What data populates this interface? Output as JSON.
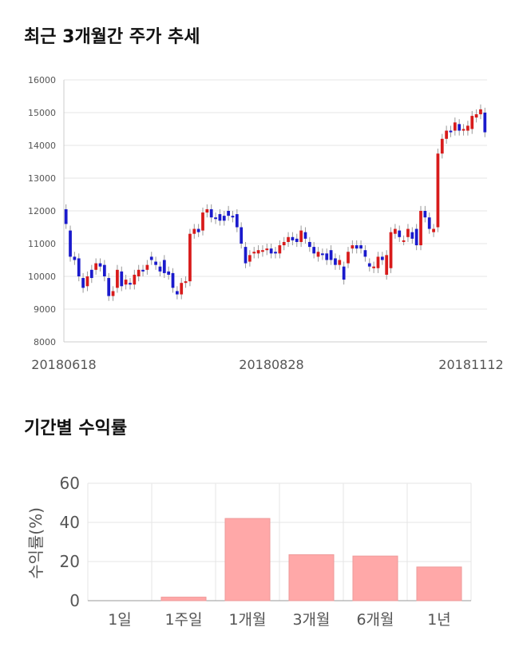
{
  "section1": {
    "title": "최근 3개월간 주가 추세"
  },
  "section2": {
    "title": "기간별 수익률"
  },
  "chart_data": [
    {
      "type": "candlestick",
      "title": "최근 3개월간 주가 추세",
      "ylim": [
        8000,
        16000
      ],
      "yticks": [
        8000,
        9000,
        10000,
        11000,
        12000,
        13000,
        14000,
        15000,
        16000
      ],
      "xticks": [
        "20180618",
        "20180828",
        "20181112"
      ],
      "up_color": "#d81b1b",
      "down_color": "#1a1acc",
      "grid": true,
      "series": [
        {
          "o": 12050,
          "c": 11600
        },
        {
          "o": 11400,
          "c": 10600
        },
        {
          "o": 10600,
          "c": 10500
        },
        {
          "o": 10550,
          "c": 10000
        },
        {
          "o": 9950,
          "c": 9650
        },
        {
          "o": 9700,
          "c": 10000
        },
        {
          "o": 10200,
          "c": 9950
        },
        {
          "o": 10200,
          "c": 10400
        },
        {
          "o": 10400,
          "c": 10300
        },
        {
          "o": 10350,
          "c": 10000
        },
        {
          "o": 9950,
          "c": 9400
        },
        {
          "o": 9400,
          "c": 9550
        },
        {
          "o": 9650,
          "c": 10200
        },
        {
          "o": 10150,
          "c": 9700
        },
        {
          "o": 9750,
          "c": 9900
        },
        {
          "o": 9800,
          "c": 9750
        },
        {
          "o": 9750,
          "c": 10050
        },
        {
          "o": 10000,
          "c": 10200
        },
        {
          "o": 10200,
          "c": 10150
        },
        {
          "o": 10200,
          "c": 10350
        },
        {
          "o": 10600,
          "c": 10500
        },
        {
          "o": 10450,
          "c": 10350
        },
        {
          "o": 10300,
          "c": 10150
        },
        {
          "o": 10500,
          "c": 10100
        },
        {
          "o": 10150,
          "c": 10050
        },
        {
          "o": 10100,
          "c": 9650
        },
        {
          "o": 9550,
          "c": 9450
        },
        {
          "o": 9450,
          "c": 9800
        },
        {
          "o": 9800,
          "c": 9850
        },
        {
          "o": 9850,
          "c": 11300
        },
        {
          "o": 11300,
          "c": 11450
        },
        {
          "o": 11450,
          "c": 11350
        },
        {
          "o": 11400,
          "c": 11950
        },
        {
          "o": 11950,
          "c": 12050
        },
        {
          "o": 12050,
          "c": 11800
        },
        {
          "o": 11800,
          "c": 11750
        },
        {
          "o": 11900,
          "c": 11700
        },
        {
          "o": 11850,
          "c": 11700
        },
        {
          "o": 12000,
          "c": 11850
        },
        {
          "o": 11850,
          "c": 11800
        },
        {
          "o": 11900,
          "c": 11500
        },
        {
          "o": 11500,
          "c": 11000
        },
        {
          "o": 10900,
          "c": 10400
        },
        {
          "o": 10450,
          "c": 10650
        },
        {
          "o": 10700,
          "c": 10750
        },
        {
          "o": 10700,
          "c": 10800
        },
        {
          "o": 10750,
          "c": 10800
        },
        {
          "o": 10800,
          "c": 10850
        },
        {
          "o": 10850,
          "c": 10700
        },
        {
          "o": 10750,
          "c": 10700
        },
        {
          "o": 10700,
          "c": 10950
        },
        {
          "o": 10950,
          "c": 11050
        },
        {
          "o": 11050,
          "c": 11200
        },
        {
          "o": 11200,
          "c": 11100
        },
        {
          "o": 11150,
          "c": 11050
        },
        {
          "o": 11050,
          "c": 11400
        },
        {
          "o": 11350,
          "c": 11150
        },
        {
          "o": 11050,
          "c": 10900
        },
        {
          "o": 10900,
          "c": 10700
        },
        {
          "o": 10600,
          "c": 10750
        },
        {
          "o": 10700,
          "c": 10650
        },
        {
          "o": 10700,
          "c": 10500
        },
        {
          "o": 10800,
          "c": 10500
        },
        {
          "o": 10550,
          "c": 10350
        },
        {
          "o": 10350,
          "c": 10500
        },
        {
          "o": 10300,
          "c": 9900
        },
        {
          "o": 10400,
          "c": 10750
        },
        {
          "o": 10850,
          "c": 10950
        },
        {
          "o": 10950,
          "c": 10850
        },
        {
          "o": 10950,
          "c": 10850
        },
        {
          "o": 10800,
          "c": 10600
        },
        {
          "o": 10400,
          "c": 10300
        },
        {
          "o": 10250,
          "c": 10300
        },
        {
          "o": 10250,
          "c": 10600
        },
        {
          "o": 10600,
          "c": 10500
        },
        {
          "o": 10050,
          "c": 10650
        },
        {
          "o": 10250,
          "c": 11350
        },
        {
          "o": 11300,
          "c": 11450
        },
        {
          "o": 11400,
          "c": 11200
        },
        {
          "o": 11100,
          "c": 11100
        },
        {
          "o": 11200,
          "c": 11450
        },
        {
          "o": 11350,
          "c": 11150
        },
        {
          "o": 11450,
          "c": 10950
        },
        {
          "o": 10950,
          "c": 12000
        },
        {
          "o": 12000,
          "c": 11800
        },
        {
          "o": 11800,
          "c": 11450
        },
        {
          "o": 11350,
          "c": 11450
        },
        {
          "o": 11500,
          "c": 13750
        },
        {
          "o": 13750,
          "c": 14200
        },
        {
          "o": 14200,
          "c": 14450
        },
        {
          "o": 14450,
          "c": 14400
        },
        {
          "o": 14450,
          "c": 14700
        },
        {
          "o": 14650,
          "c": 14450
        },
        {
          "o": 14450,
          "c": 14500
        },
        {
          "o": 14450,
          "c": 14600
        },
        {
          "o": 14500,
          "c": 14900
        },
        {
          "o": 14850,
          "c": 14950
        },
        {
          "o": 14950,
          "c": 15100
        },
        {
          "o": 15000,
          "c": 14400
        }
      ]
    },
    {
      "type": "bar",
      "title": "기간별 수익률",
      "ylabel": "수익률(%)",
      "categories": [
        "1일",
        "1주일",
        "1개월",
        "3개월",
        "6개월",
        "1년"
      ],
      "values": [
        0,
        1.8,
        42,
        23.5,
        22.8,
        17.2
      ],
      "ylim": [
        0,
        60
      ],
      "yticks": [
        0,
        20,
        40,
        60
      ],
      "bar_color": "#ffa8a8",
      "grid": true
    }
  ]
}
